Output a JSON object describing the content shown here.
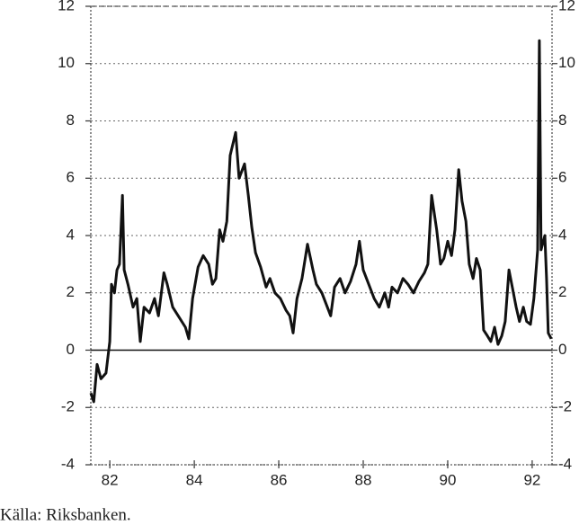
{
  "chart_data": {
    "type": "line",
    "note": "Källa: Riksbanken.",
    "xlim": [
      81.55,
      92.47
    ],
    "xticks": [
      82,
      84,
      86,
      88,
      90,
      92
    ],
    "ylim": [
      -4,
      12
    ],
    "yticks": [
      -4,
      -2,
      0,
      2,
      4,
      6,
      8,
      10,
      12
    ],
    "y2lim": [
      -4,
      12
    ],
    "y2ticks": [
      -4,
      -2,
      0,
      2,
      4,
      6,
      8,
      10,
      12
    ],
    "grid": true,
    "zero_line": true,
    "series": [
      {
        "color": "#111111",
        "x": [
          81.55,
          81.62,
          81.7,
          81.79,
          81.91,
          82.0,
          82.04,
          82.11,
          82.17,
          82.23,
          82.3,
          82.34,
          82.43,
          82.55,
          82.64,
          82.72,
          82.81,
          82.94,
          83.06,
          83.15,
          83.28,
          83.36,
          83.49,
          83.62,
          83.79,
          83.87,
          83.96,
          84.09,
          84.21,
          84.34,
          84.43,
          84.51,
          84.6,
          84.68,
          84.77,
          84.85,
          84.98,
          85.06,
          85.19,
          85.28,
          85.36,
          85.45,
          85.57,
          85.7,
          85.79,
          85.91,
          86.04,
          86.17,
          86.26,
          86.34,
          86.43,
          86.55,
          86.68,
          86.81,
          86.89,
          87.02,
          87.15,
          87.23,
          87.32,
          87.45,
          87.57,
          87.7,
          87.83,
          87.91,
          88.0,
          88.13,
          88.26,
          88.38,
          88.51,
          88.6,
          88.68,
          88.81,
          88.94,
          89.06,
          89.19,
          89.32,
          89.45,
          89.53,
          89.62,
          89.74,
          89.83,
          89.91,
          90.0,
          90.09,
          90.17,
          90.26,
          90.34,
          90.43,
          90.51,
          90.6,
          90.68,
          90.77,
          90.85,
          90.94,
          91.02,
          91.11,
          91.19,
          91.28,
          91.36,
          91.45,
          91.53,
          91.62,
          91.7,
          91.79,
          91.87,
          91.96,
          92.04,
          92.13,
          92.17,
          92.21,
          92.3,
          92.34,
          92.38,
          92.45
        ],
        "values": [
          -1.5,
          -1.8,
          -0.5,
          -1.0,
          -0.8,
          0.3,
          2.3,
          2.0,
          2.8,
          3.0,
          5.4,
          2.8,
          2.3,
          1.5,
          1.8,
          0.3,
          1.5,
          1.3,
          1.8,
          1.2,
          2.7,
          2.3,
          1.5,
          1.2,
          0.8,
          0.4,
          1.8,
          2.9,
          3.3,
          3.0,
          2.3,
          2.5,
          4.2,
          3.8,
          4.5,
          6.8,
          7.6,
          6.0,
          6.5,
          5.4,
          4.3,
          3.4,
          2.9,
          2.2,
          2.5,
          2.0,
          1.8,
          1.4,
          1.2,
          0.6,
          1.8,
          2.5,
          3.7,
          2.8,
          2.3,
          2.0,
          1.5,
          1.2,
          2.2,
          2.5,
          2.0,
          2.4,
          3.0,
          3.8,
          2.8,
          2.3,
          1.8,
          1.5,
          2.0,
          1.5,
          2.2,
          2.0,
          2.5,
          2.3,
          2.0,
          2.4,
          2.7,
          3.0,
          5.4,
          4.2,
          3.0,
          3.2,
          3.8,
          3.3,
          4.2,
          6.3,
          5.2,
          4.5,
          3.0,
          2.5,
          3.2,
          2.8,
          0.7,
          0.5,
          0.3,
          0.8,
          0.2,
          0.5,
          1.0,
          2.8,
          2.2,
          1.5,
          1.0,
          1.5,
          1.0,
          0.9,
          1.8,
          3.5,
          10.8,
          3.5,
          4.0,
          2.5,
          0.6,
          0.4
        ]
      }
    ]
  }
}
